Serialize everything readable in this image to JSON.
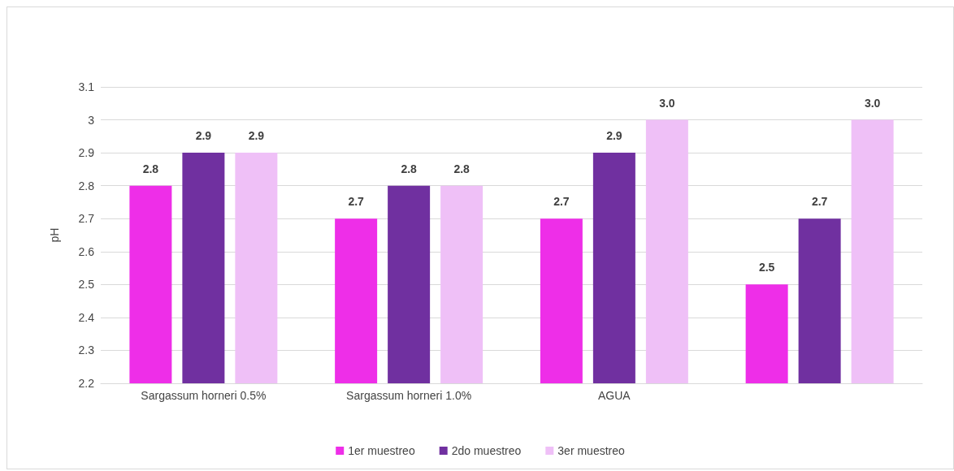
{
  "chart_data": {
    "type": "bar",
    "ylabel": "pH",
    "categories": [
      "Sargassum horneri 0.5%",
      "Sargassum horneri 1.0%",
      "AGUA",
      null
    ],
    "series": [
      {
        "name": "1er muestreo",
        "color": "#ee2ee8",
        "values": [
          2.8,
          2.7,
          2.7,
          2.5
        ],
        "value_labels": [
          "2.8",
          "2.7",
          "2.7",
          "2.5"
        ]
      },
      {
        "name": "2do muestreo",
        "color": "#7030a0",
        "values": [
          2.9,
          2.8,
          2.9,
          2.7
        ],
        "value_labels": [
          "2.9",
          "2.8",
          "2.9",
          "2.7"
        ]
      },
      {
        "name": "3er muestreo",
        "color": "#efc0f7",
        "values": [
          2.9,
          2.8,
          3.0,
          3.0
        ],
        "value_labels": [
          "2.9",
          "2.8",
          "3.0",
          "3.0"
        ]
      }
    ],
    "ylim": [
      2.2,
      3.1
    ],
    "yticks": [
      2.2,
      2.3,
      2.4,
      2.5,
      2.6,
      2.7,
      2.8,
      2.9,
      3,
      3.1
    ],
    "grid": "y",
    "legend": "bottom"
  }
}
